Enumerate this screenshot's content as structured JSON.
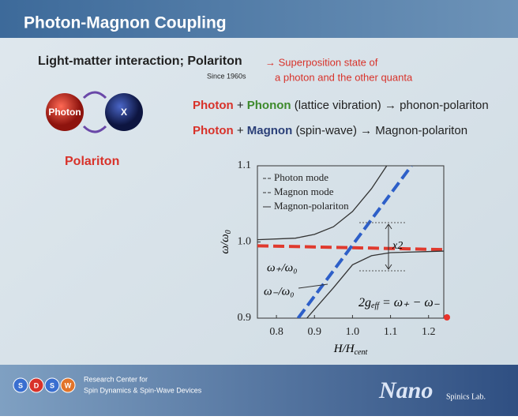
{
  "header": {
    "title": "Photon-Magnon Coupling"
  },
  "intro": {
    "heading": "Light-matter interaction; Polariton",
    "since": "Since 1960s",
    "note_line1": "→ Superposition state of",
    "note_line2": "a photon and the other quanta"
  },
  "diagram": {
    "left": "Photon",
    "right": "X",
    "caption": "Polariton"
  },
  "rows": [
    [
      {
        "text": "Photon",
        "color": "#d8322a"
      },
      {
        "text": "+",
        "color": "#222222"
      },
      {
        "text": "Phonon",
        "color": "#3d8a2c"
      },
      {
        "text": "(lattice vibration) → phonon-polariton",
        "color": "#222222"
      }
    ],
    [
      {
        "text": "Photon",
        "color": "#d8322a"
      },
      {
        "text": "+",
        "color": "#222222"
      },
      {
        "text": "Magnon",
        "color": "#2a3f78"
      },
      {
        "text": "(spin-wave) → Magnon-polariton",
        "color": "#222222"
      }
    ]
  ],
  "chart_data": {
    "type": "line",
    "x_label": "H/H",
    "x_label_sub": "cent",
    "y_label": "ω/ω",
    "y_label_sub": "0",
    "xlim": [
      0.75,
      1.24
    ],
    "ylim": [
      0.9,
      1.1
    ],
    "xticks": [
      0.8,
      0.9,
      {
        "value": 1,
        "label": "1.0"
      },
      1.1,
      1.2
    ],
    "yticks": [
      0.9,
      {
        "value": 1,
        "label": "1.0"
      },
      1.1
    ],
    "series": [
      {
        "name": "Photon mode",
        "color": "#e03a2e",
        "dash": true,
        "x": [
          0.75,
          1.24
        ],
        "values": [
          0.995,
          0.99
        ]
      },
      {
        "name": "Magnon mode",
        "color": "#2d5fc8",
        "dash": true,
        "x": [
          0.857,
          1.155
        ],
        "values": [
          0.9,
          1.1
        ]
      },
      {
        "name": "Magnon-polariton",
        "color": "#333333",
        "dash": false,
        "x": [
          0.75,
          0.85,
          0.9,
          0.95,
          1.0,
          1.05,
          1.09,
          null,
          0.88,
          0.95,
          1.0,
          1.05,
          1.1,
          1.24
        ],
        "values": [
          1.003,
          1.005,
          1.01,
          1.02,
          1.04,
          1.07,
          1.1,
          null,
          0.9,
          0.94,
          0.97,
          0.982,
          0.986,
          0.988
        ]
      }
    ],
    "annotations": {
      "upper": "ω₊/ω₀",
      "lower": "ω₋/ω₀",
      "gap": "x2",
      "coupling_a": "2g",
      "coupling_sub": "eff",
      "coupling_b": "= ω₊ − ω₋"
    }
  },
  "footer": {
    "logo": [
      "S",
      "D",
      "S",
      "W"
    ],
    "center_line1": "Research Center for",
    "center_line2": "Spin Dynamics & Spin-Wave Devices",
    "lab": "Nano",
    "lab_sub": "Spinics Lab."
  }
}
